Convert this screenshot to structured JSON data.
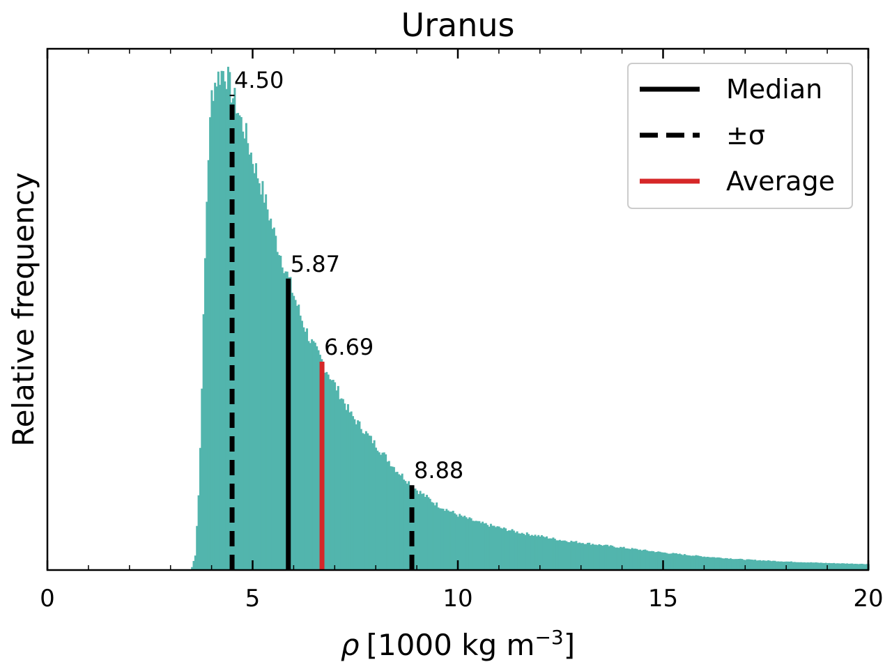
{
  "chart_data": {
    "type": "bar",
    "title": "Uranus",
    "xlabel_symbol": "ρ",
    "xlabel_units": "[1000 kg m",
    "xlabel_exp": "−3",
    "xlabel_close": "]",
    "ylabel": "Relative frequency",
    "xlim": [
      0,
      20
    ],
    "ylim": [
      0,
      1.0
    ],
    "xticks": [
      0,
      5,
      10,
      15,
      20
    ],
    "xtick_labels": [
      "0",
      "5",
      "10",
      "15",
      "20"
    ],
    "grid": false,
    "legend_position": "top-right",
    "histogram_color": "#52b5ad",
    "histogram": {
      "x": [
        3.5,
        3.6,
        3.7,
        3.8,
        3.9,
        4.0,
        4.1,
        4.2,
        4.3,
        4.4,
        4.5,
        4.6,
        4.7,
        4.8,
        4.9,
        5.0,
        5.2,
        5.4,
        5.6,
        5.8,
        6.0,
        6.2,
        6.4,
        6.6,
        6.8,
        7.0,
        7.2,
        7.4,
        7.6,
        7.8,
        8.0,
        8.5,
        9.0,
        9.5,
        10.0,
        10.5,
        11.0,
        11.5,
        12.0,
        12.5,
        13.0,
        13.5,
        14.0,
        15.0,
        16.0,
        17.0,
        18.0,
        19.0,
        20.0
      ],
      "y": [
        0.0,
        0.03,
        0.18,
        0.5,
        0.8,
        0.95,
        0.98,
        0.99,
        1.0,
        0.98,
        0.95,
        0.93,
        0.9,
        0.88,
        0.85,
        0.82,
        0.77,
        0.71,
        0.65,
        0.6,
        0.55,
        0.5,
        0.46,
        0.43,
        0.4,
        0.37,
        0.34,
        0.31,
        0.29,
        0.27,
        0.25,
        0.2,
        0.16,
        0.13,
        0.11,
        0.095,
        0.085,
        0.075,
        0.068,
        0.06,
        0.055,
        0.05,
        0.045,
        0.035,
        0.027,
        0.021,
        0.017,
        0.014,
        0.012
      ]
    },
    "markers": [
      {
        "kind": "sigma",
        "x": 4.5,
        "label": "4.50",
        "color": "#000000",
        "dashed": true
      },
      {
        "kind": "median",
        "x": 5.87,
        "label": "5.87",
        "color": "#000000",
        "dashed": false
      },
      {
        "kind": "average",
        "x": 6.69,
        "label": "6.69",
        "color": "#d62728",
        "dashed": false
      },
      {
        "kind": "sigma",
        "x": 8.88,
        "label": "8.88",
        "color": "#000000",
        "dashed": true
      }
    ],
    "legend": [
      {
        "label": "Median",
        "color": "#000000",
        "dashed": false
      },
      {
        "label": "±σ",
        "color": "#000000",
        "dashed": true
      },
      {
        "label": "Average",
        "color": "#d62728",
        "dashed": false
      }
    ]
  }
}
